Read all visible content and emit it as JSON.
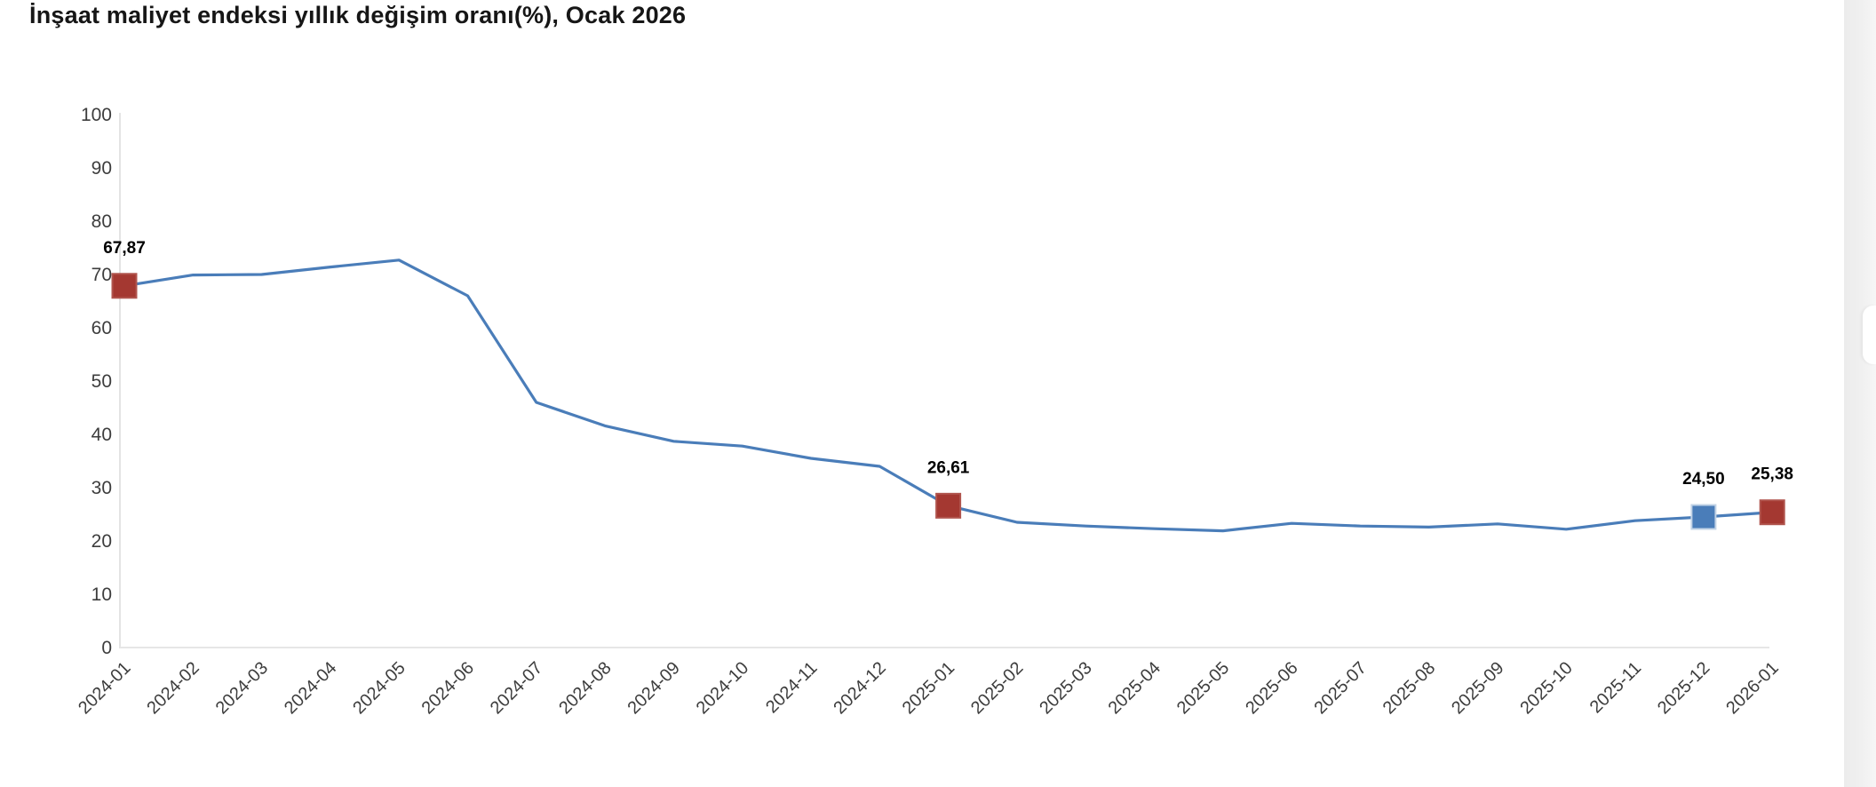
{
  "title": "İnşaat maliyet endeksi yıllık değişim oranı(%), Ocak 2026",
  "chart_data": {
    "type": "line",
    "title": "İnşaat maliyet endeksi yıllık değişim oranı(%), Ocak 2026",
    "x": [
      "2024-01",
      "2024-02",
      "2024-03",
      "2024-04",
      "2024-05",
      "2024-06",
      "2024-07",
      "2024-08",
      "2024-09",
      "2024-10",
      "2024-11",
      "2024-12",
      "2025-01",
      "2025-02",
      "2025-03",
      "2025-04",
      "2025-05",
      "2025-06",
      "2025-07",
      "2025-08",
      "2025-09",
      "2025-10",
      "2025-11",
      "2025-12",
      "2026-01"
    ],
    "values": [
      67.87,
      69.9,
      70.0,
      71.4,
      72.7,
      66.0,
      46.0,
      41.6,
      38.7,
      37.8,
      35.5,
      34.0,
      26.61,
      23.5,
      22.8,
      22.3,
      21.9,
      23.3,
      22.8,
      22.6,
      23.2,
      22.2,
      23.8,
      24.5,
      25.38
    ],
    "xlabel": "",
    "ylabel": "",
    "ylim": [
      0,
      100
    ],
    "yticks": [
      0,
      10,
      20,
      30,
      40,
      50,
      60,
      70,
      80,
      90,
      100
    ],
    "grid": false,
    "legend": false,
    "line_color": "#4a7db9",
    "axis_color": "#dcdcdc",
    "annotated_points": [
      {
        "x": "2024-01",
        "value": 67.87,
        "label": "67,87",
        "marker_color": "#a43831",
        "marker_edge": "#b0544d"
      },
      {
        "x": "2025-01",
        "value": 26.61,
        "label": "26,61",
        "marker_color": "#a43831",
        "marker_edge": "#b0544d"
      },
      {
        "x": "2025-12",
        "value": 24.5,
        "label": "24,50",
        "marker_color": "#4a7db9",
        "marker_edge": "#c2d3e6"
      },
      {
        "x": "2026-01",
        "value": 25.38,
        "label": "25,38",
        "marker_color": "#a43831",
        "marker_edge": "#b0544d"
      }
    ]
  },
  "scrollbar": {
    "present": true
  }
}
